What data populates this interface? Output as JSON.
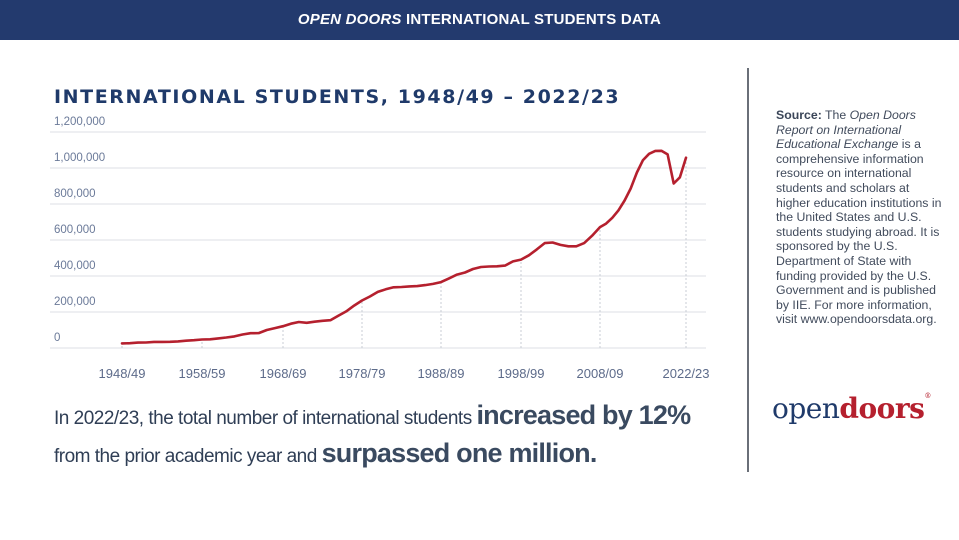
{
  "header": {
    "title_italic": "OPEN DOORS",
    "title_rest": " INTERNATIONAL STUDENTS DATA"
  },
  "chart_data": {
    "type": "line",
    "title": "INTERNATIONAL STUDENTS, 1948/49 – 2022/23",
    "xlabel": "",
    "ylabel": "",
    "ylim": [
      0,
      1200000
    ],
    "yticks": [
      0,
      200000,
      400000,
      600000,
      800000,
      1000000,
      1200000
    ],
    "ytick_labels": [
      "0",
      "200,000",
      "400,000",
      "600,000",
      "800,000",
      "1,000,000",
      "1,200,000"
    ],
    "xtick_labels": [
      "1948/49",
      "1958/59",
      "1968/69",
      "1978/79",
      "1988/89",
      "1998/99",
      "2008/09",
      "2022/23"
    ],
    "xtick_years": [
      1948,
      1958,
      1968,
      1978,
      1988,
      1998,
      2008,
      2022
    ],
    "grid": true,
    "line_color": "#b5202e",
    "start_year": 1948,
    "values": [
      25464,
      26433,
      29813,
      30462,
      33675,
      33833,
      34232,
      36494,
      40666,
      43391,
      47245,
      48486,
      53107,
      58086,
      64705,
      74814,
      82045,
      82709,
      100262,
      110315,
      121362,
      134959,
      144708,
      140126,
      146097,
      151066,
      154580,
      179344,
      203068,
      235509,
      263938,
      286343,
      311882,
      326299,
      336985,
      338894,
      342113,
      343777,
      349609,
      356187,
      366354,
      386851,
      407529,
      419585,
      438618,
      449749,
      452635,
      453787,
      457984,
      481280,
      490933,
      514723,
      547867,
      582996,
      586323,
      572509,
      565039,
      564766,
      582984,
      623805,
      671616,
      690923,
      723277,
      764495,
      819644,
      886052,
      974926,
      1043839,
      1078822,
      1094792,
      1095299,
      1075496,
      914095,
      948519,
      1057188
    ]
  },
  "summary": {
    "part1": "In 2022/23, the total number of international students ",
    "bold1": "increased by 12%",
    "part2": "from the prior academic year and ",
    "bold2": "surpassed one million."
  },
  "source": {
    "label": "Source:",
    "t1": " The ",
    "italic": "Open Doors Report on International Educational Exchange",
    "t2": " is a comprehensive information resource on international students and scholars at higher education institutions in the United States and U.S. students studying abroad. It is sponsored by the U.S. Department of State with funding provided by the U.S. Government and is published by IIE. For more information, visit www.opendoorsdata.org."
  },
  "logo": {
    "part1": "open",
    "part2": "doors",
    "mark": "®"
  },
  "colors": {
    "navy": "#233a6e",
    "red": "#b5202e"
  }
}
